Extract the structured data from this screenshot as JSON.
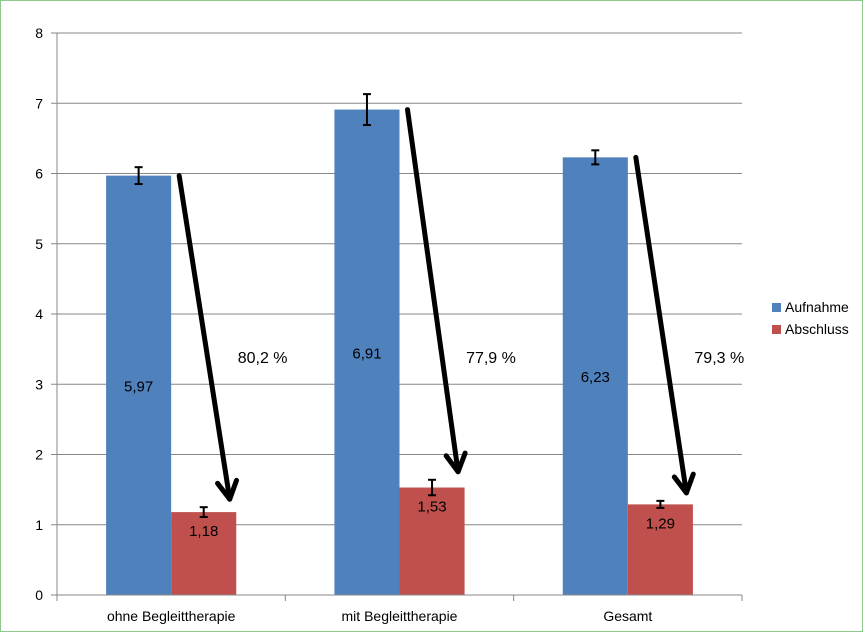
{
  "chart_data": {
    "type": "bar",
    "categories": [
      "ohne Begleittherapie",
      "mit Begleittherapie",
      "Gesamt"
    ],
    "series": [
      {
        "name": "Aufnahme",
        "values": [
          5.97,
          6.91,
          6.23
        ],
        "labels": [
          "5,97",
          "6,91",
          "6,23"
        ],
        "error": [
          0.12,
          0.22,
          0.1
        ],
        "color": "#4f81bd"
      },
      {
        "name": "Abschluss",
        "values": [
          1.18,
          1.53,
          1.29
        ],
        "labels": [
          "1,18",
          "1,53",
          "1,29"
        ],
        "error": [
          0.07,
          0.11,
          0.05
        ],
        "color": "#c0504d"
      }
    ],
    "annotations": [
      "80,2 %",
      "77,9 %",
      "79,3 %"
    ],
    "ylim": [
      0,
      8
    ],
    "yticks": [
      0,
      1,
      2,
      3,
      4,
      5,
      6,
      7,
      8
    ],
    "grid": true,
    "legend": "right"
  }
}
